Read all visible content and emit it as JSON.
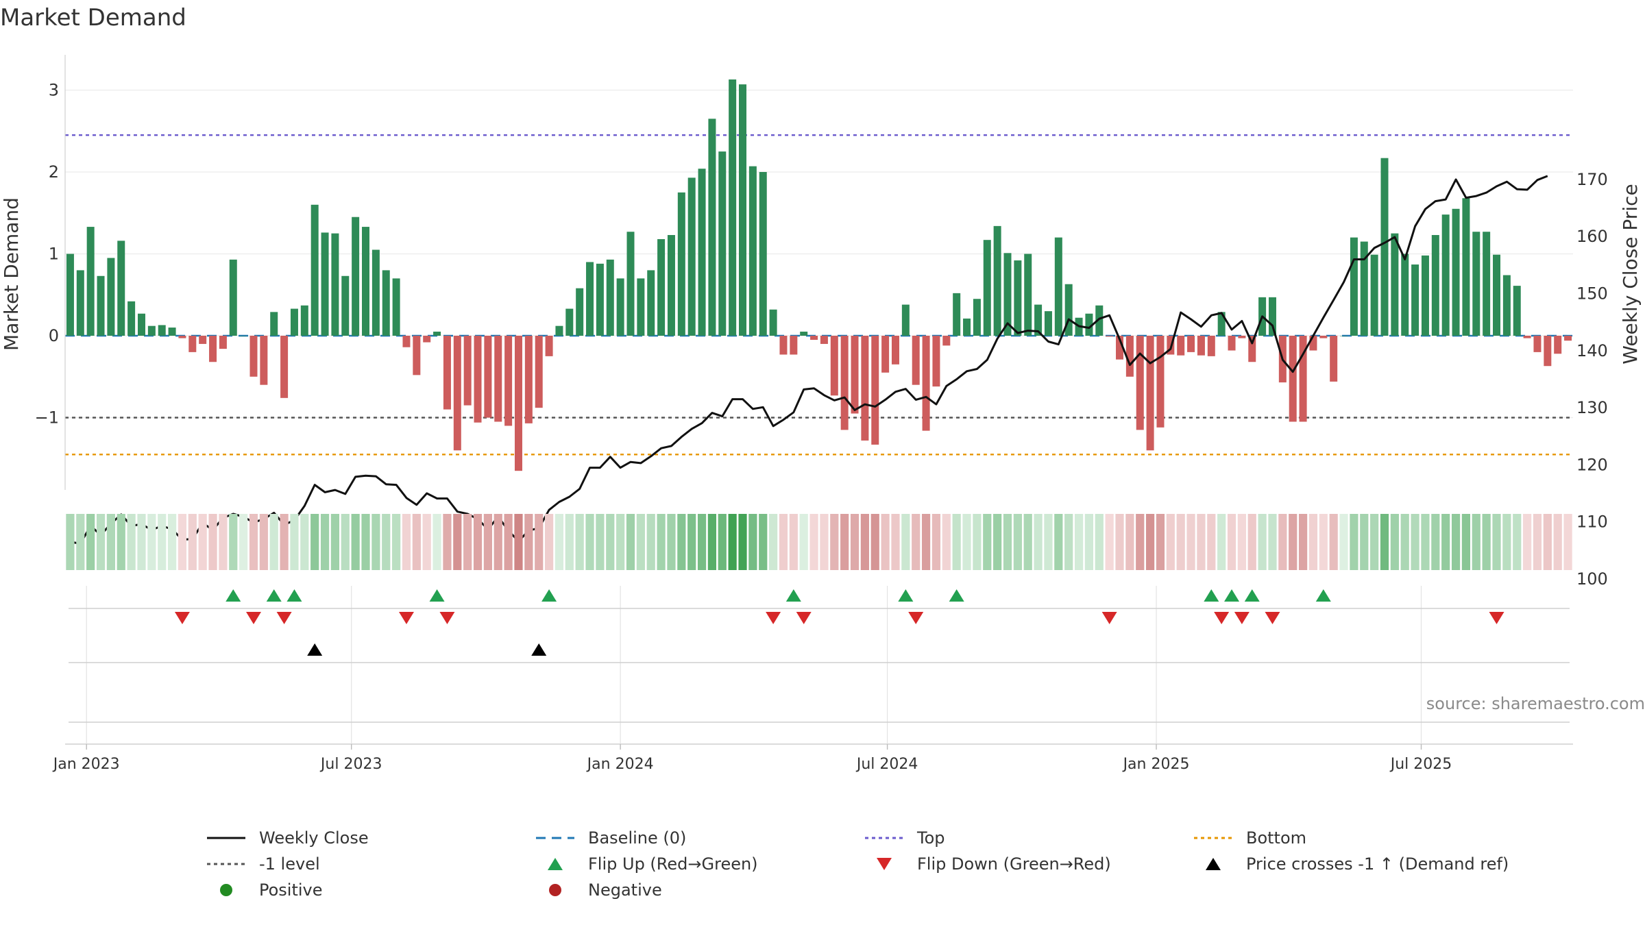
{
  "chart_data": {
    "type": "bar+line",
    "title": "Market Demand",
    "source": "source: sharemaestro.com",
    "y_left_label": "Market Demand",
    "y_right_label": "Weekly Close Price",
    "y_left_range": [
      -1.9,
      3.4
    ],
    "y_right_range": [
      97,
      174
    ],
    "y_left_ticks": [
      {
        "v": 3,
        "label": "3"
      },
      {
        "v": 2,
        "label": "2"
      },
      {
        "v": 1,
        "label": "1"
      },
      {
        "v": 0,
        "label": "0"
      },
      {
        "v": -1,
        "label": "−1"
      }
    ],
    "y_right_ticks": [
      {
        "v": 170,
        "label": "170"
      },
      {
        "v": 160,
        "label": "160"
      },
      {
        "v": 150,
        "label": "150"
      },
      {
        "v": 140,
        "label": "140"
      },
      {
        "v": 130,
        "label": "130"
      },
      {
        "v": 120,
        "label": "120"
      },
      {
        "v": 110,
        "label": "110"
      },
      {
        "v": 100,
        "label": "100"
      }
    ],
    "x_ticks": [
      {
        "index": 1.6,
        "label": "Jan 2023"
      },
      {
        "index": 27.6,
        "label": "Jul 2023"
      },
      {
        "index": 54,
        "label": "Jan 2024"
      },
      {
        "index": 80.2,
        "label": "Jul 2024"
      },
      {
        "index": 106.6,
        "label": "Jan 2025"
      },
      {
        "index": 132.6,
        "label": "Jul 2025"
      }
    ],
    "reference_lines": {
      "top": 2.45,
      "bottom": -1.45,
      "minus_one": -1.0,
      "baseline": 0
    },
    "colors": {
      "positive_bar": "#2e8b57",
      "negative_bar": "#cd5c5c",
      "price_line": "#111111",
      "top_line": "#6a5acd",
      "bottom_line": "#e69500",
      "minus_one_line": "#555555",
      "baseline": "#1f77b4",
      "flip_up": "#22a050",
      "flip_down": "#d62728",
      "cross_marker": "#000000",
      "positive_dot": "#228b22",
      "negative_dot": "#b22222"
    },
    "demand": [
      1.0,
      0.8,
      1.33,
      0.73,
      0.95,
      1.16,
      0.42,
      0.27,
      0.12,
      0.13,
      0.1,
      -0.03,
      -0.2,
      -0.1,
      -0.32,
      -0.16,
      0.93,
      0.0,
      -0.5,
      -0.6,
      0.29,
      -0.76,
      0.33,
      0.37,
      1.6,
      1.26,
      1.25,
      0.73,
      1.45,
      1.33,
      1.05,
      0.8,
      0.7,
      -0.14,
      -0.48,
      -0.08,
      0.05,
      -0.9,
      -1.4,
      -0.85,
      -1.06,
      -1.0,
      -1.05,
      -1.1,
      -1.65,
      -1.07,
      -0.88,
      -0.25,
      0.12,
      0.33,
      0.58,
      0.9,
      0.88,
      0.93,
      0.7,
      1.27,
      0.7,
      0.8,
      1.18,
      1.23,
      1.75,
      1.93,
      2.04,
      2.65,
      2.25,
      3.13,
      3.07,
      2.07,
      2.0,
      0.32,
      -0.23,
      -0.23,
      0.05,
      -0.05,
      -0.1,
      -0.73,
      -1.15,
      -0.95,
      -1.28,
      -1.33,
      -0.45,
      -0.35,
      0.38,
      -0.6,
      -1.16,
      -0.62,
      -0.12,
      0.52,
      0.21,
      0.45,
      1.17,
      1.34,
      1.01,
      0.92,
      1.0,
      0.38,
      0.3,
      1.2,
      0.63,
      0.22,
      0.27,
      0.37,
      -0.01,
      -0.29,
      -0.5,
      -1.15,
      -1.4,
      -1.12,
      -0.23,
      -0.24,
      -0.2,
      -0.24,
      -0.25,
      0.29,
      -0.18,
      -0.03,
      -0.32,
      0.47,
      0.47,
      -0.57,
      -1.05,
      -1.05,
      -0.18,
      -0.03,
      -0.56,
      0.0,
      1.2,
      1.15,
      0.99,
      2.17,
      1.25,
      1.0,
      0.87,
      0.98,
      1.23,
      1.48,
      1.55,
      1.68,
      1.27,
      1.27,
      0.99,
      0.74,
      0.61,
      -0.03,
      -0.2,
      -0.37,
      -0.22,
      -0.06
    ],
    "weekly_close": [
      106.5,
      106.2,
      109.3,
      107.7,
      109.7,
      111.3,
      109.3,
      109.6,
      108.6,
      109.3,
      108.7,
      106.9,
      107.0,
      109.8,
      108.6,
      110.7,
      111.4,
      110.9,
      109.9,
      110.5,
      111.6,
      109.5,
      110.3,
      112.8,
      116.5,
      115.2,
      115.6,
      114.9,
      117.9,
      118.1,
      118.0,
      116.6,
      116.5,
      114.2,
      113.0,
      115.0,
      114.1,
      114.1,
      111.8,
      111.4,
      110.5,
      108.7,
      110.9,
      108.5,
      106.6,
      108.5,
      108.9,
      112.1,
      113.5,
      114.4,
      115.8,
      119.5,
      119.5,
      121.4,
      119.5,
      120.5,
      120.3,
      121.5,
      122.9,
      123.3,
      124.9,
      126.3,
      127.3,
      129.1,
      128.5,
      131.5,
      131.5,
      129.8,
      130.1,
      126.8,
      127.9,
      129.2,
      133.2,
      133.4,
      132.2,
      131.3,
      131.8,
      129.6,
      130.6,
      130.2,
      131.4,
      132.8,
      133.3,
      131.4,
      131.9,
      130.6,
      133.8,
      135.0,
      136.4,
      136.8,
      138.4,
      142.1,
      144.8,
      143.1,
      143.5,
      143.4,
      141.6,
      141.1,
      145.5,
      144.3,
      144.0,
      145.6,
      146.2,
      142.0,
      137.5,
      139.5,
      137.8,
      138.9,
      140.3,
      146.7,
      145.5,
      144.2,
      146.2,
      146.6,
      143.7,
      145.2,
      141.3,
      146.0,
      144.4,
      138.4,
      136.3,
      139.4,
      142.6,
      145.8,
      148.9,
      152.0,
      156.0,
      156.0,
      158.0,
      158.9,
      159.9,
      156.0,
      161.8,
      164.8,
      166.2,
      166.5,
      170.0,
      166.8,
      167.1,
      167.7,
      168.8,
      169.6,
      168.3,
      168.2,
      169.9,
      170.6
    ],
    "flip_up": [
      16,
      20,
      22,
      36,
      47,
      71,
      82,
      87,
      112,
      114,
      116,
      123
    ],
    "flip_down": [
      11,
      18,
      21,
      33,
      37,
      69,
      72,
      83,
      102,
      113,
      115,
      118,
      140
    ],
    "price_cross_up": [
      24,
      46
    ],
    "legend": [
      {
        "label": "Weekly Close",
        "symbol": "solid-line",
        "color": "#111111"
      },
      {
        "label": "Baseline (0)",
        "symbol": "dashed-line",
        "color": "#1f77b4"
      },
      {
        "label": "Top",
        "symbol": "dotted-line",
        "color": "#6a5acd"
      },
      {
        "label": "Bottom",
        "symbol": "dotted-line",
        "color": "#e69500"
      },
      {
        "label": "-1 level",
        "symbol": "dotted-line",
        "color": "#555555"
      },
      {
        "label": "Flip Up (Red→Green)",
        "symbol": "triangle-up",
        "color": "#22a050"
      },
      {
        "label": "Flip Down (Green→Red)",
        "symbol": "triangle-down",
        "color": "#d62728"
      },
      {
        "label": "Price crosses -1 ↑ (Demand ref)",
        "symbol": "triangle-up",
        "color": "#000000"
      },
      {
        "label": "Positive",
        "symbol": "dot",
        "color": "#228b22"
      },
      {
        "label": "Negative",
        "symbol": "dot",
        "color": "#b22222"
      }
    ]
  }
}
